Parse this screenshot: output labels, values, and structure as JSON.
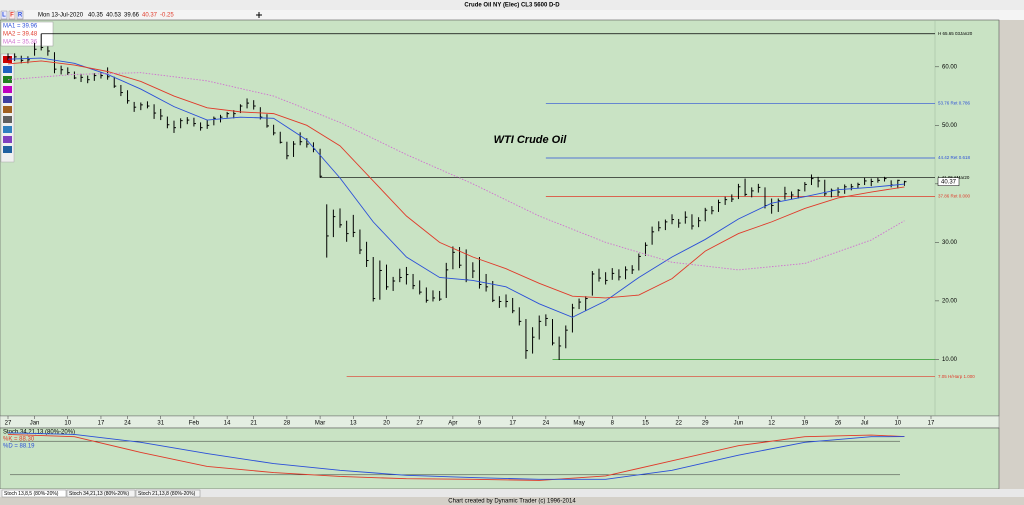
{
  "title": "Crude Oil NY (Elec) CL3 5600 D-D",
  "header": {
    "flags": [
      "L",
      "F",
      "R"
    ],
    "date": "Mon 13-Jul-2020",
    "open": 40.35,
    "high": 40.53,
    "low": 39.66,
    "close": 40.37,
    "change": -0.25
  },
  "chart_data": [
    {
      "type": "ohlc",
      "annotation": "WTI Crude Oil",
      "color": "#000000",
      "close": [
        61.7,
        61.7,
        61.1,
        61.2,
        63,
        63.3,
        62.7,
        59.6,
        59.5,
        59,
        58.1,
        58.2,
        57.8,
        58.5,
        58.5,
        58.3,
        56.7,
        55.6,
        54.2,
        53.1,
        53.5,
        53.3,
        52.1,
        51.6,
        50.1,
        49.6,
        50.8,
        50.9,
        50.3,
        49.6,
        50,
        51.2,
        51.4,
        52,
        52,
        53.3,
        53.8,
        53.3,
        51.4,
        49.9,
        48.7,
        47.1,
        44.8,
        46.8,
        47.2,
        46.8,
        45.9,
        41.3,
        31.1,
        34.4,
        33,
        31.5,
        31.7,
        28.7,
        26.9,
        20.4,
        25.2,
        22.4,
        23.4,
        24,
        24.5,
        22.6,
        21.5,
        20.1,
        20.5,
        20.3,
        25.3,
        28.3,
        26.1,
        23.6,
        25.1,
        22.8,
        22.4,
        20.1,
        19.9,
        19.9,
        18.3,
        16.5,
        11.5,
        13.8,
        16.5,
        17,
        12.8,
        12.3,
        15,
        18.8,
        19.8,
        20.4,
        24.6,
        23.9,
        23.5,
        24.7,
        24.1,
        25.3,
        25.3,
        27.6,
        29.5,
        31.8,
        32.5,
        33.5,
        33.9,
        33.3,
        34.3,
        32.8,
        33.7,
        35.5,
        35.4,
        36.8,
        37.3,
        37.4,
        39.5,
        38.2,
        38.8,
        39.4,
        36.3,
        36.3,
        37.1,
        38.3,
        38.1,
        38.9,
        39.9,
        40.9,
        40.5,
        38.3,
        38.9,
        38.6,
        39.5,
        39.5,
        39.9,
        40.5,
        40.4,
        40.6,
        40.9,
        39.8,
        40.6,
        40.37
      ],
      "high": [
        62.3,
        62.3,
        61.9,
        61.8,
        64.1,
        65.65,
        63.5,
        62.5,
        60.2,
        59.9,
        59.2,
        58.8,
        58.5,
        58.9,
        59.1,
        59.9,
        58.3,
        56.9,
        56,
        54,
        53.9,
        54.1,
        53.6,
        52.8,
        51.5,
        50.8,
        51.2,
        51.4,
        51.3,
        50.5,
        50.9,
        51.5,
        51.8,
        52.3,
        52.6,
        53.6,
        54.6,
        54.3,
        53.1,
        51.9,
        50.1,
        48.9,
        47.2,
        47.3,
        48.8,
        47.8,
        47.1,
        46,
        36.5,
        35.6,
        35.8,
        33.7,
        34.7,
        32.2,
        30.1,
        27.5,
        26.9,
        26.2,
        24.1,
        25.5,
        25.8,
        24.6,
        23.5,
        22.3,
        21.8,
        21.7,
        26.5,
        29.3,
        29.2,
        28.8,
        26.6,
        27.5,
        24.6,
        23.4,
        20.8,
        21.1,
        20.5,
        18.9,
        16.9,
        15.5,
        17.5,
        17.7,
        16.9,
        13.9,
        15.8,
        19.5,
        20.4,
        20.8,
        25.1,
        25.5,
        24.9,
        25.6,
        25.4,
        25.9,
        26.1,
        28.1,
        30,
        32.7,
        33.6,
        33.9,
        34.8,
        34,
        35.3,
        34.8,
        34.3,
        35.9,
        36.2,
        37.3,
        37.8,
        38.2,
        40,
        40.9,
        39.4,
        40,
        39.4,
        37.5,
        37.5,
        39.5,
        38.7,
        39.1,
        40.3,
        41.6,
        41.2,
        40.7,
        39.2,
        39.4,
        39.9,
        40,
        40.2,
        41.1,
        40.9,
        41.1,
        41.2,
        40.6,
        40.7,
        40.53
      ],
      "low": [
        61.1,
        61,
        60.6,
        60.6,
        61.9,
        62.8,
        61.9,
        58.9,
        58.7,
        58.6,
        57.9,
        57.4,
        57.2,
        57.6,
        58,
        57.8,
        56.4,
        55,
        53.7,
        52.3,
        52.6,
        52.9,
        51.1,
        50.9,
        49.5,
        48.7,
        49.5,
        50.2,
        49.8,
        49.1,
        49.4,
        50,
        50.5,
        51.3,
        51.2,
        52.1,
        52.9,
        52.7,
        51,
        49.6,
        48.3,
        46.9,
        44.2,
        44.6,
        46.6,
        46.2,
        45.4,
        41.05,
        27.4,
        30.9,
        32.5,
        30.1,
        30.9,
        28,
        25.8,
        19.9,
        20.2,
        21.9,
        21.7,
        23.2,
        22.8,
        22,
        21.1,
        19.7,
        19.9,
        20,
        20.5,
        25.4,
        25.6,
        23.2,
        23.9,
        22.1,
        21.6,
        19.8,
        18.8,
        18.9,
        17.9,
        15.8,
        10.1,
        11,
        13.4,
        15.7,
        12.4,
        9.9,
        11.9,
        14.6,
        18.6,
        18.3,
        20.9,
        23.3,
        22.8,
        23.6,
        23.5,
        23.7,
        24.6,
        25.2,
        27.7,
        29.6,
        31.9,
        32.1,
        33.1,
        32.5,
        33.2,
        32.2,
        32.6,
        33.6,
        34.8,
        35.2,
        36.4,
        36.9,
        37.4,
        37.9,
        37.7,
        38.5,
        35.8,
        34.9,
        35.2,
        37.3,
        37.4,
        37.5,
        38.7,
        39.8,
        39.4,
        37.9,
        37.7,
        37.9,
        38.3,
        38.9,
        39.2,
        39.8,
        39.6,
        40.2,
        40.4,
        39.4,
        39.2,
        39.66
      ],
      "xlim": [
        0,
        139
      ],
      "xticks": [
        {
          "value": 0,
          "label": "27"
        },
        {
          "value": 4,
          "label": "Jan"
        },
        {
          "value": 9,
          "label": "10"
        },
        {
          "value": 14,
          "label": "17"
        },
        {
          "value": 18,
          "label": "24"
        },
        {
          "value": 23,
          "label": "31"
        },
        {
          "value": 28,
          "label": "Feb"
        },
        {
          "value": 33,
          "label": "14"
        },
        {
          "value": 37,
          "label": "21"
        },
        {
          "value": 42,
          "label": "28"
        },
        {
          "value": 47,
          "label": "Mar"
        },
        {
          "value": 52,
          "label": "13"
        },
        {
          "value": 57,
          "label": "20"
        },
        {
          "value": 62,
          "label": "27"
        },
        {
          "value": 67,
          "label": "Apr"
        },
        {
          "value": 71,
          "label": "9"
        },
        {
          "value": 76,
          "label": "17"
        },
        {
          "value": 81,
          "label": "24"
        },
        {
          "value": 86,
          "label": "May"
        },
        {
          "value": 91,
          "label": "8"
        },
        {
          "value": 96,
          "label": "15"
        },
        {
          "value": 101,
          "label": "22"
        },
        {
          "value": 105,
          "label": "29"
        },
        {
          "value": 110,
          "label": "Jun"
        },
        {
          "value": 115,
          "label": "12"
        },
        {
          "value": 120,
          "label": "19"
        },
        {
          "value": 125,
          "label": "26"
        },
        {
          "value": 129,
          "label": "Jul"
        },
        {
          "value": 134,
          "label": "10"
        },
        {
          "value": 139,
          "label": "17"
        }
      ],
      "ylim": [
        0.5,
        68
      ],
      "yticks": [
        {
          "value": 60,
          "label": "60.00"
        },
        {
          "value": 50,
          "label": "50.00"
        },
        {
          "value": 40,
          "label": "40.00"
        },
        {
          "value": 30,
          "label": "30.00"
        },
        {
          "value": 20,
          "label": "20.00"
        },
        {
          "value": 10,
          "label": "10.00"
        }
      ],
      "series": [
        {
          "name": "MA1 = 39.96",
          "color": "#2b4fd8",
          "style": "solid",
          "x": [
            0,
            5,
            10,
            15,
            20,
            25,
            30,
            35,
            40,
            45,
            50,
            55,
            60,
            65,
            70,
            75,
            80,
            85,
            90,
            95,
            100,
            105,
            110,
            115,
            120,
            125,
            130,
            135
          ],
          "values": [
            61.3,
            61.5,
            60.6,
            58.7,
            56.2,
            53.2,
            50.9,
            51.4,
            51.2,
            47.5,
            41,
            33.5,
            27.5,
            24,
            23.5,
            22.4,
            19.5,
            17.2,
            20,
            24,
            27.5,
            30.5,
            34,
            36.7,
            37.8,
            39,
            39.4,
            39.96
          ]
        },
        {
          "name": "MA2 = 39.48",
          "color": "#e03a2a",
          "style": "solid",
          "x": [
            0,
            5,
            10,
            15,
            20,
            25,
            30,
            35,
            40,
            45,
            50,
            55,
            60,
            65,
            70,
            75,
            80,
            85,
            90,
            95,
            100,
            105,
            110,
            115,
            120,
            125,
            130,
            135
          ],
          "values": [
            60.5,
            61,
            60.3,
            59.2,
            57.5,
            55,
            53,
            52.3,
            52,
            50,
            46.5,
            40.5,
            34.5,
            30,
            27.5,
            25.5,
            23,
            20.8,
            20.5,
            21,
            23.8,
            28.5,
            31.5,
            33.5,
            35.8,
            37.6,
            38.6,
            39.48
          ]
        },
        {
          "name": "MA4 = 35.36",
          "color": "#d070d0",
          "style": "dotted",
          "x": [
            0,
            10,
            20,
            30,
            40,
            50,
            60,
            70,
            80,
            90,
            100,
            110,
            120,
            130,
            135
          ],
          "values": [
            57.8,
            58.7,
            59,
            57.6,
            55,
            50.5,
            45,
            40,
            34.5,
            30,
            26.6,
            25.3,
            26.4,
            30.4,
            33.7
          ]
        }
      ],
      "levels": [
        {
          "value": 65.65,
          "label": "H 65.65 03Jan20",
          "color": "#000000",
          "from": 5
        },
        {
          "value": 53.76,
          "label": "53.76 Ret 0.786",
          "color": "#2b4fd8",
          "from": 81
        },
        {
          "value": 44.42,
          "label": "44.42 Ret 0.618",
          "color": "#2b4fd8",
          "from": 81
        },
        {
          "value": 41.05,
          "label": "L 41.05 6Mar20",
          "color": "#000000",
          "from": 47
        },
        {
          "value": 37.86,
          "label": "37.86 Ret 0.000",
          "color": "#e03a2a",
          "from": 81
        },
        {
          "value": 10,
          "color": "#2a9a2a",
          "from": 82
        },
        {
          "value": 7.05,
          "label": "7.05 H/Harp 1.000",
          "color": "#e03a2a",
          "from": 51
        }
      ]
    },
    {
      "type": "line",
      "title": "Stoch 34,21,13 (80%-20%)",
      "xlim": [
        0,
        139
      ],
      "ylim": [
        0,
        100
      ],
      "levels": [
        80,
        20
      ],
      "series": [
        {
          "name": "%K = 88.30",
          "color": "#e03a2a",
          "style": "solid",
          "x": [
            0,
            10,
            20,
            30,
            40,
            50,
            60,
            70,
            80,
            90,
            100,
            110,
            120,
            130,
            135
          ],
          "values": [
            92,
            88,
            60,
            35,
            24,
            17,
            13,
            12,
            10,
            18,
            45,
            72,
            88,
            91,
            88.3
          ]
        },
        {
          "name": "%D = 88.19",
          "color": "#2b4fd8",
          "style": "solid",
          "x": [
            0,
            10,
            20,
            30,
            40,
            50,
            60,
            70,
            80,
            90,
            100,
            110,
            120,
            130,
            135
          ],
          "values": [
            95,
            92,
            78,
            58,
            40,
            28,
            19,
            15,
            12,
            12,
            28,
            55,
            78,
            88,
            88.19
          ]
        }
      ]
    }
  ],
  "tabs": [
    "Stoch 13,8,5 (80%-20%)",
    "Stoch 34,21,13 (80%-20%)",
    "Stoch 21,13,8 (80%-20%)"
  ],
  "footer": "Chart created by Dynamic Trader  (c) 1996-2014"
}
